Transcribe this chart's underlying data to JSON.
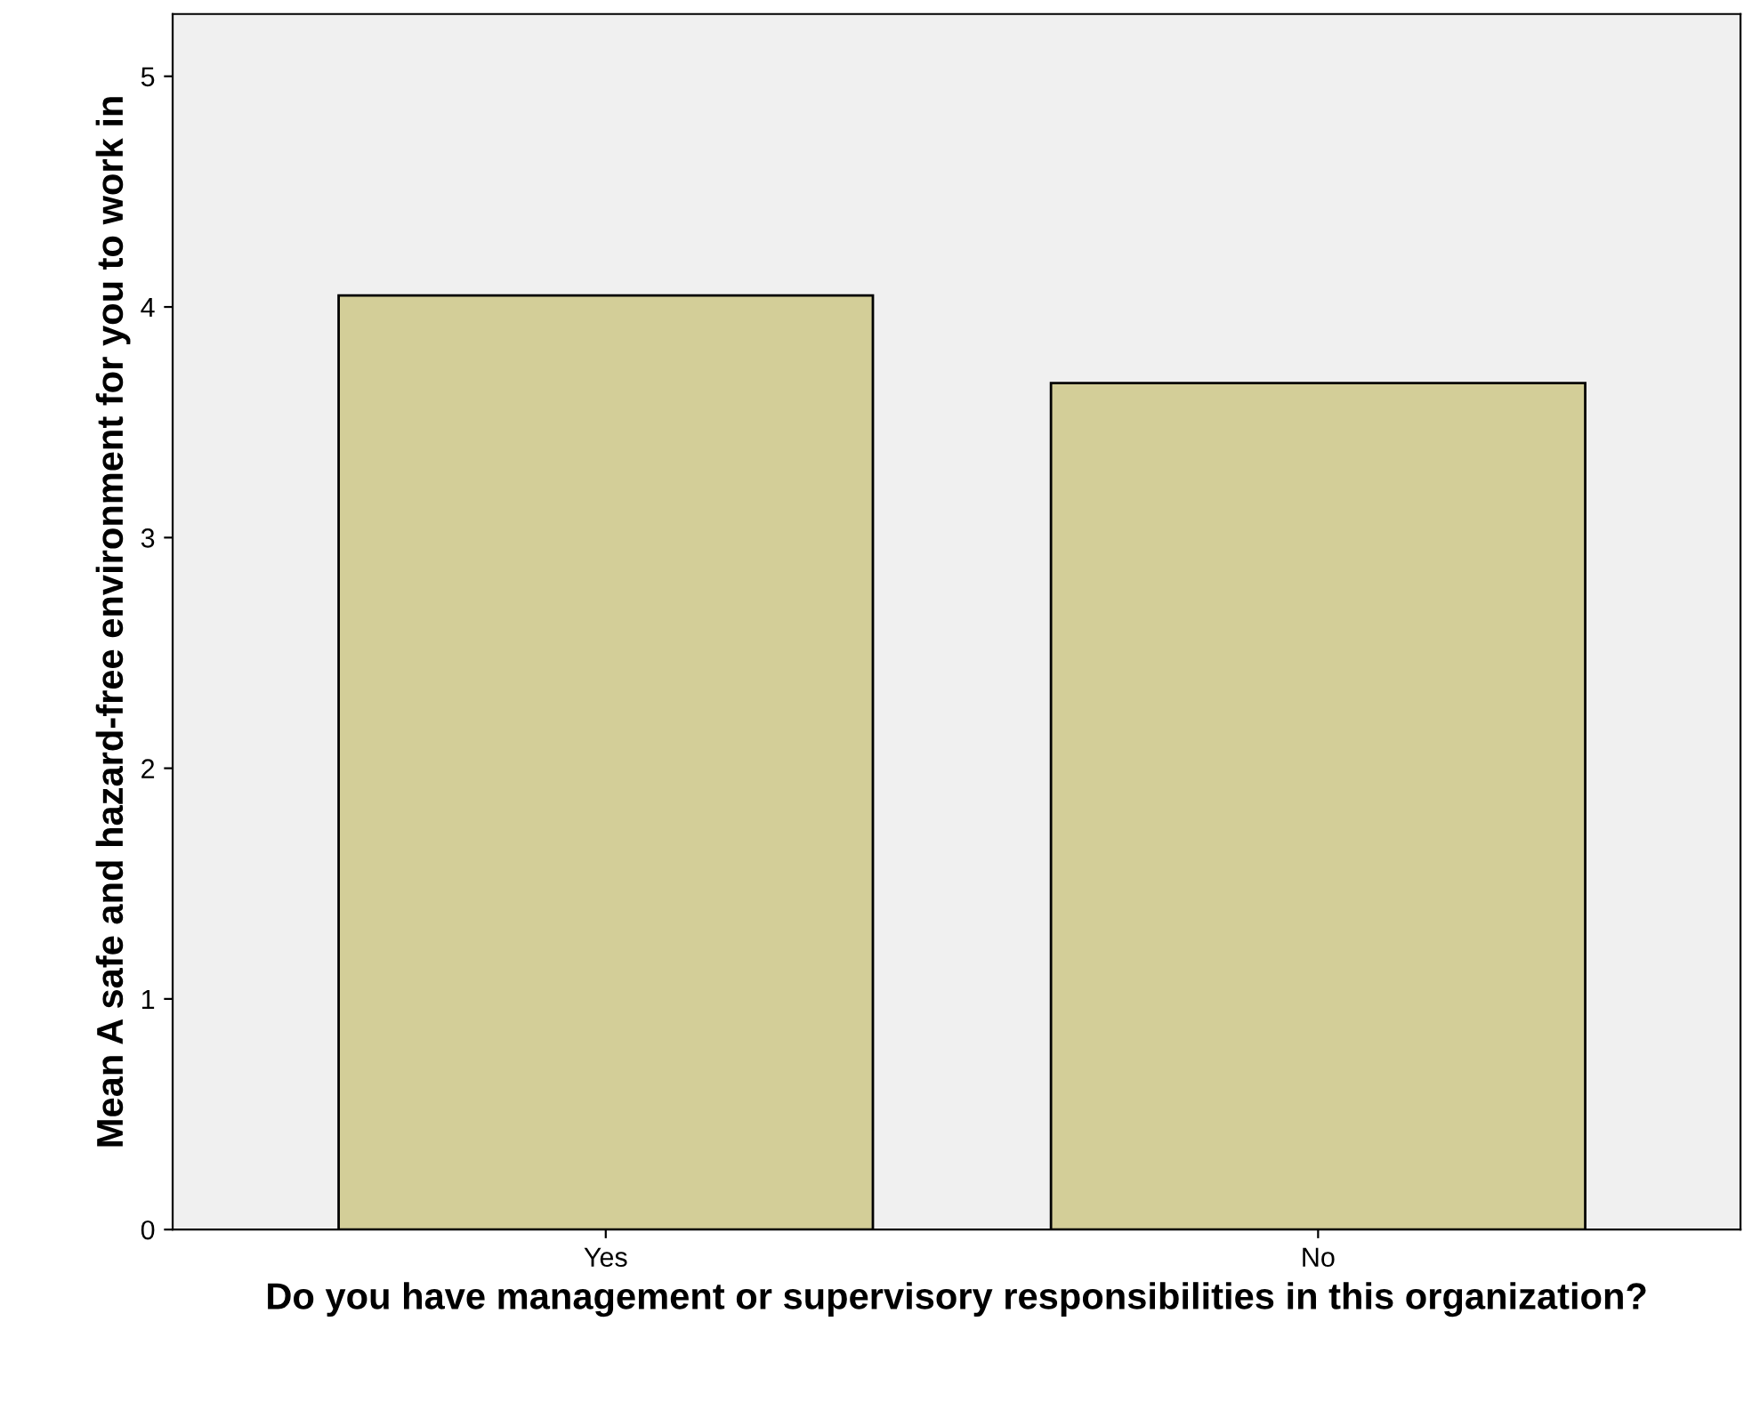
{
  "chart_data": {
    "type": "bar",
    "xlabel": "Do you have management or supervisory responsibilities in this organization?",
    "ylabel": "Mean A safe and hazard-free environment for you to work in",
    "categories": [
      "Yes",
      "No"
    ],
    "values": [
      4.05,
      3.67
    ],
    "color": "#d3ce98",
    "ylim": [
      0,
      5.27
    ],
    "yticks": [
      0,
      1,
      2,
      3,
      4,
      5
    ],
    "grid": false,
    "legend": false
  }
}
